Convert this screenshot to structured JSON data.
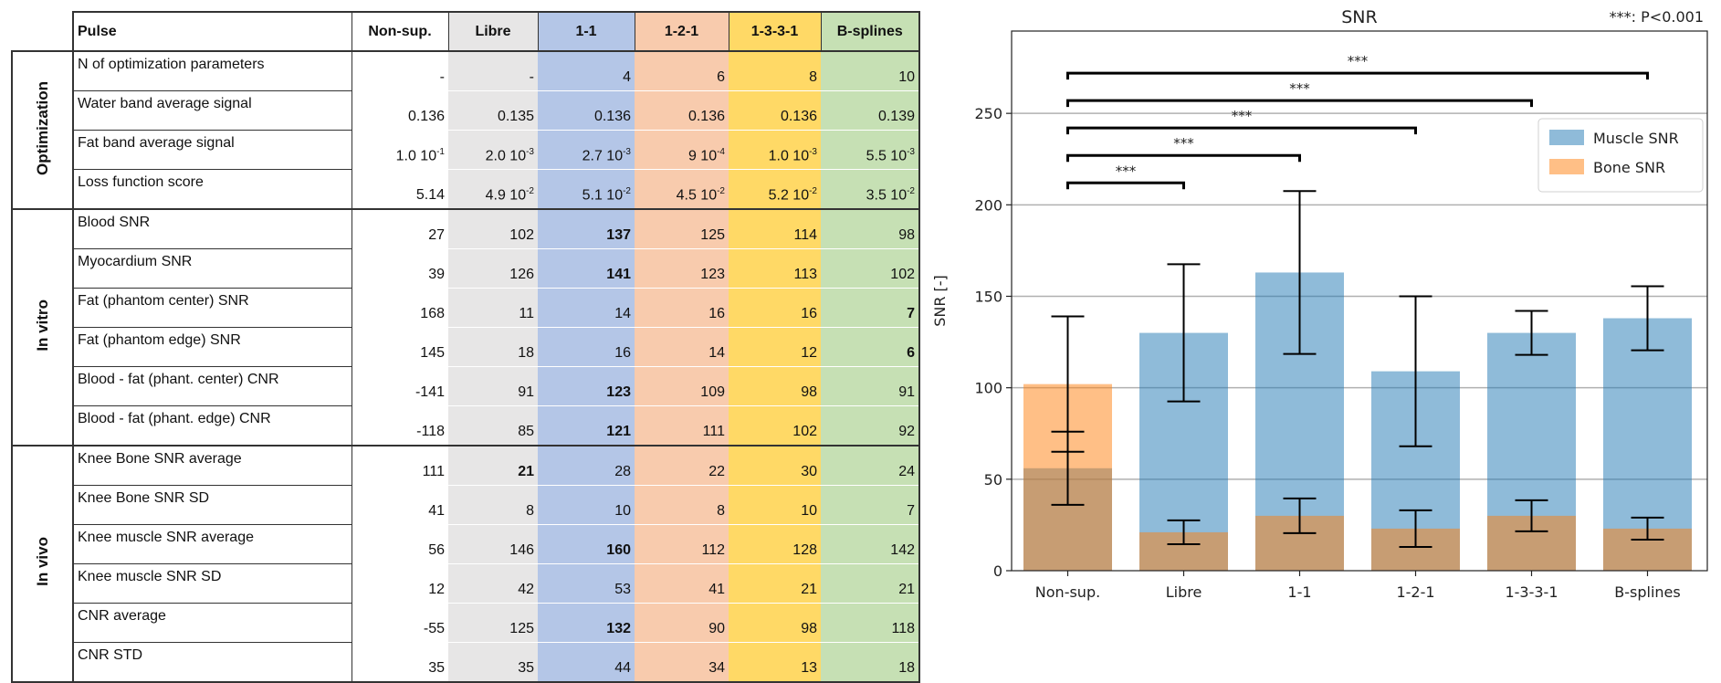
{
  "table": {
    "header_label": "Pulse",
    "columns": [
      {
        "name": "Non-sup.",
        "color": "#ffffff"
      },
      {
        "name": "Libre",
        "color": "#e7e6e6"
      },
      {
        "name": "1-1",
        "color": "#b4c6e7"
      },
      {
        "name": "1-2-1",
        "color": "#f8cbad"
      },
      {
        "name": "1-3-3-1",
        "color": "#ffd966"
      },
      {
        "name": "B-splines",
        "color": "#c6e0b4"
      }
    ],
    "groups": [
      {
        "name": "Optimization",
        "rows": [
          {
            "label": "N of optimization parameters",
            "values": [
              "-",
              "-",
              "4",
              "6",
              "8",
              "10"
            ],
            "bold": []
          },
          {
            "label": "Water band average signal",
            "values": [
              "0.136",
              "0.135",
              "0.136",
              "0.136",
              "0.136",
              "0.139"
            ],
            "bold": []
          },
          {
            "label": "Fat band average signal",
            "values": [
              {
                "m": "1.0 10",
                "e": "-1"
              },
              {
                "m": "2.0 10",
                "e": "-3"
              },
              {
                "m": "2.7 10",
                "e": "-3"
              },
              {
                "m": "9 10",
                "e": "-4"
              },
              {
                "m": "1.0 10",
                "e": "-3"
              },
              {
                "m": "5.5 10",
                "e": "-3"
              }
            ],
            "bold": []
          },
          {
            "label": "Loss function score",
            "values": [
              "5.14",
              {
                "m": "4.9 10",
                "e": "-2"
              },
              {
                "m": "5.1 10",
                "e": "-2"
              },
              {
                "m": "4.5 10",
                "e": "-2"
              },
              {
                "m": "5.2 10",
                "e": "-2"
              },
              {
                "m": "3.5 10",
                "e": "-2"
              }
            ],
            "bold": []
          }
        ]
      },
      {
        "name": "In vitro",
        "rows": [
          {
            "label": "Blood SNR",
            "values": [
              "27",
              "102",
              "137",
              "125",
              "114",
              "98"
            ],
            "bold": [
              2
            ]
          },
          {
            "label": "Myocardium SNR",
            "values": [
              "39",
              "126",
              "141",
              "123",
              "113",
              "102"
            ],
            "bold": [
              2
            ]
          },
          {
            "label": "Fat (phantom center) SNR",
            "values": [
              "168",
              "11",
              "14",
              "16",
              "16",
              "7"
            ],
            "bold": [
              5
            ]
          },
          {
            "label": "Fat (phantom edge) SNR",
            "values": [
              "145",
              "18",
              "16",
              "14",
              "12",
              "6"
            ],
            "bold": [
              5
            ]
          },
          {
            "label": "Blood - fat (phant. center) CNR",
            "values": [
              "-141",
              "91",
              "123",
              "109",
              "98",
              "91"
            ],
            "bold": [
              2
            ]
          },
          {
            "label": "Blood - fat (phant. edge) CNR",
            "values": [
              "-118",
              "85",
              "121",
              "111",
              "102",
              "92"
            ],
            "bold": [
              2
            ]
          }
        ]
      },
      {
        "name": "In vivo",
        "rows": [
          {
            "label": "Knee Bone SNR average",
            "values": [
              "111",
              "21",
              "28",
              "22",
              "30",
              "24"
            ],
            "bold": [
              1
            ]
          },
          {
            "label": "Knee Bone SNR SD",
            "values": [
              "41",
              "8",
              "10",
              "8",
              "10",
              "7"
            ],
            "bold": []
          },
          {
            "label": "Knee muscle SNR average",
            "values": [
              "56",
              "146",
              "160",
              "112",
              "128",
              "142"
            ],
            "bold": [
              2
            ]
          },
          {
            "label": "Knee muscle SNR SD",
            "values": [
              "12",
              "42",
              "53",
              "41",
              "21",
              "21"
            ],
            "bold": []
          },
          {
            "label": "CNR average",
            "values": [
              "-55",
              "125",
              "132",
              "90",
              "98",
              "118"
            ],
            "bold": [
              2
            ]
          },
          {
            "label": "CNR STD",
            "values": [
              "35",
              "35",
              "44",
              "34",
              "13",
              "18"
            ],
            "bold": []
          }
        ]
      }
    ]
  },
  "chart_data": {
    "type": "bar",
    "title": "SNR",
    "annotation": "***: P<0.001",
    "xlabel": "",
    "ylabel": "SNR [-]",
    "ylim": [
      0,
      295
    ],
    "yticks": [
      0,
      50,
      100,
      150,
      200,
      250
    ],
    "grid": "y",
    "legend_position": "upper-right",
    "categories": [
      "Non-sup.",
      "Libre",
      "1-1",
      "1-2-1",
      "1-3-3-1",
      "B-splines"
    ],
    "series": [
      {
        "name": "Muscle SNR",
        "color": "#1f77b4",
        "alpha": 0.5,
        "values": [
          56,
          130,
          163,
          109,
          130,
          138
        ],
        "yerr": [
          20,
          37.5,
          44.5,
          41,
          12,
          17.5
        ]
      },
      {
        "name": "Bone SNR",
        "color": "#ff7f0e",
        "alpha": 0.5,
        "values": [
          102,
          21,
          30,
          23,
          30,
          23
        ],
        "yerr": [
          37,
          6.5,
          9.5,
          10,
          8.5,
          6
        ]
      }
    ],
    "significance": [
      {
        "from": "Non-sup.",
        "to": "Libre",
        "y": 212,
        "label": "***"
      },
      {
        "from": "Non-sup.",
        "to": "1-1",
        "y": 227,
        "label": "***"
      },
      {
        "from": "Non-sup.",
        "to": "1-2-1",
        "y": 242,
        "label": "***"
      },
      {
        "from": "Non-sup.",
        "to": "1-3-3-1",
        "y": 257,
        "label": "***"
      },
      {
        "from": "Non-sup.",
        "to": "B-splines",
        "y": 272,
        "label": "***"
      }
    ]
  }
}
